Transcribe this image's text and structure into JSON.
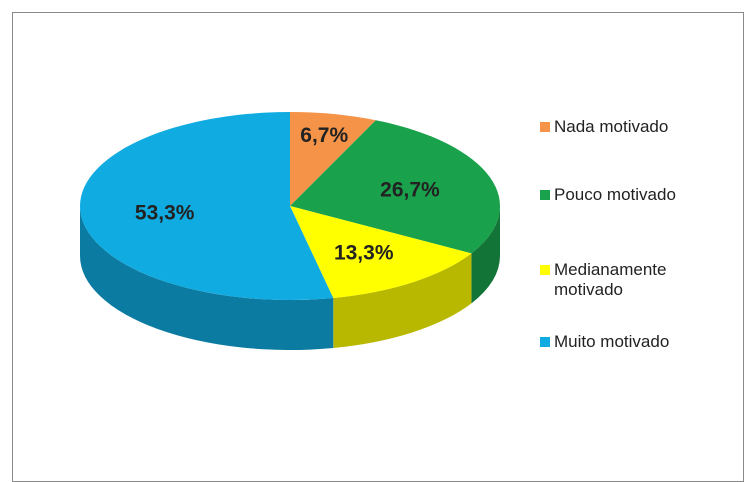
{
  "chart_data": {
    "type": "pie",
    "categories": [
      "Nada motivado",
      "Pouco motivado",
      "Medianamente motivado",
      "Muito motivado"
    ],
    "values": [
      6.7,
      26.7,
      13.3,
      53.3
    ],
    "value_labels": [
      "6,7%",
      "26,7%",
      "13,3%",
      "53,3%"
    ],
    "colors": [
      "#f59448",
      "#1aa14c",
      "#ffff00",
      "#10abe0"
    ],
    "legend": "right"
  }
}
